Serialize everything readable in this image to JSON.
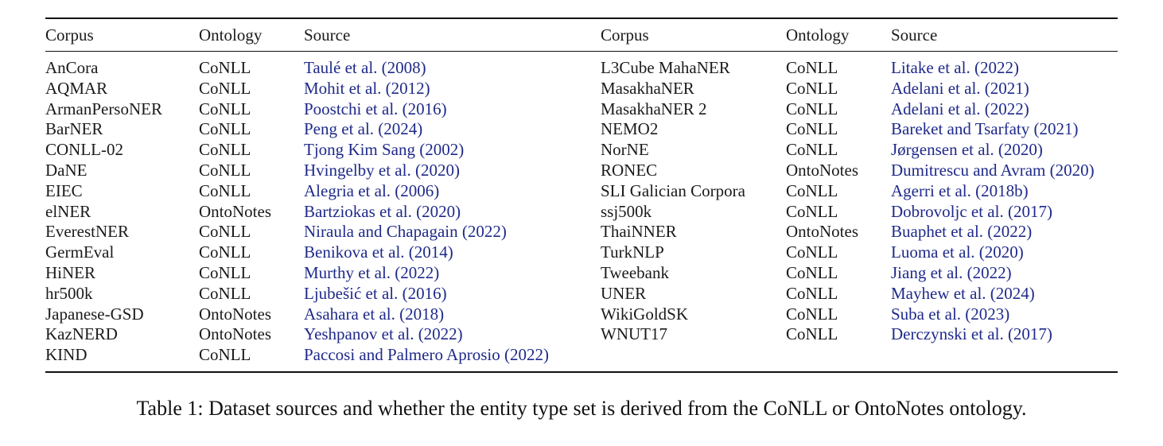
{
  "table": {
    "headers": [
      "Corpus",
      "Ontology",
      "Source",
      "Corpus",
      "Ontology",
      "Source"
    ],
    "left": [
      {
        "corpus": "AnCora",
        "ontology": "CoNLL",
        "source": "Taulé et al. (2008)"
      },
      {
        "corpus": "AQMAR",
        "ontology": "CoNLL",
        "source": "Mohit et al. (2012)"
      },
      {
        "corpus": "ArmanPersoNER",
        "ontology": "CoNLL",
        "source": "Poostchi et al. (2016)"
      },
      {
        "corpus": "BarNER",
        "ontology": "CoNLL",
        "source": "Peng et al. (2024)"
      },
      {
        "corpus": "CONLL-02",
        "ontology": "CoNLL",
        "source": "Tjong Kim Sang (2002)"
      },
      {
        "corpus": "DaNE",
        "ontology": "CoNLL",
        "source": "Hvingelby et al. (2020)"
      },
      {
        "corpus": "EIEC",
        "ontology": "CoNLL",
        "source": "Alegria et al. (2006)"
      },
      {
        "corpus": "elNER",
        "ontology": "OntoNotes",
        "source": "Bartziokas et al. (2020)"
      },
      {
        "corpus": "EverestNER",
        "ontology": "CoNLL",
        "source": "Niraula and Chapagain (2022)"
      },
      {
        "corpus": "GermEval",
        "ontology": "CoNLL",
        "source": "Benikova et al. (2014)"
      },
      {
        "corpus": "HiNER",
        "ontology": "CoNLL",
        "source": "Murthy et al. (2022)"
      },
      {
        "corpus": "hr500k",
        "ontology": "CoNLL",
        "source": "Ljubešić et al. (2016)"
      },
      {
        "corpus": "Japanese-GSD",
        "ontology": "OntoNotes",
        "source": "Asahara et al. (2018)"
      },
      {
        "corpus": "KazNERD",
        "ontology": "OntoNotes",
        "source": "Yeshpanov et al. (2022)"
      },
      {
        "corpus": "KIND",
        "ontology": "CoNLL",
        "source": "Paccosi and Palmero Aprosio (2022)"
      }
    ],
    "right": [
      {
        "corpus": "L3Cube MahaNER",
        "ontology": "CoNLL",
        "source": "Litake et al. (2022)"
      },
      {
        "corpus": "MasakhaNER",
        "ontology": "CoNLL",
        "source": "Adelani et al. (2021)"
      },
      {
        "corpus": "MasakhaNER 2",
        "ontology": "CoNLL",
        "source": "Adelani et al. (2022)"
      },
      {
        "corpus": "NEMO2",
        "ontology": "CoNLL",
        "source": "Bareket and Tsarfaty (2021)"
      },
      {
        "corpus": "NorNE",
        "ontology": "CoNLL",
        "source": "Jørgensen et al. (2020)"
      },
      {
        "corpus": "RONEC",
        "ontology": "OntoNotes",
        "source": "Dumitrescu and Avram (2020)"
      },
      {
        "corpus": "SLI Galician Corpora",
        "ontology": "CoNLL",
        "source": "Agerri et al. (2018b)"
      },
      {
        "corpus": "ssj500k",
        "ontology": "CoNLL",
        "source": "Dobrovoljc et al. (2017)"
      },
      {
        "corpus": "ThaiNNER",
        "ontology": "OntoNotes",
        "source": "Buaphet et al. (2022)"
      },
      {
        "corpus": "TurkNLP",
        "ontology": "CoNLL",
        "source": "Luoma et al. (2020)"
      },
      {
        "corpus": "Tweebank",
        "ontology": "CoNLL",
        "source": "Jiang et al. (2022)"
      },
      {
        "corpus": "UNER",
        "ontology": "CoNLL",
        "source": "Mayhew et al. (2024)"
      },
      {
        "corpus": "WikiGoldSK",
        "ontology": "CoNLL",
        "source": "Suba et al. (2023)"
      },
      {
        "corpus": "WNUT17",
        "ontology": "CoNLL",
        "source": "Derczynski et al. (2017)"
      }
    ]
  },
  "caption": "Table 1: Dataset sources and whether the entity type set is derived from the CoNLL or OntoNotes ontology.",
  "colors": {
    "citation": "#1f2a8a",
    "text": "#1a1a1a"
  }
}
